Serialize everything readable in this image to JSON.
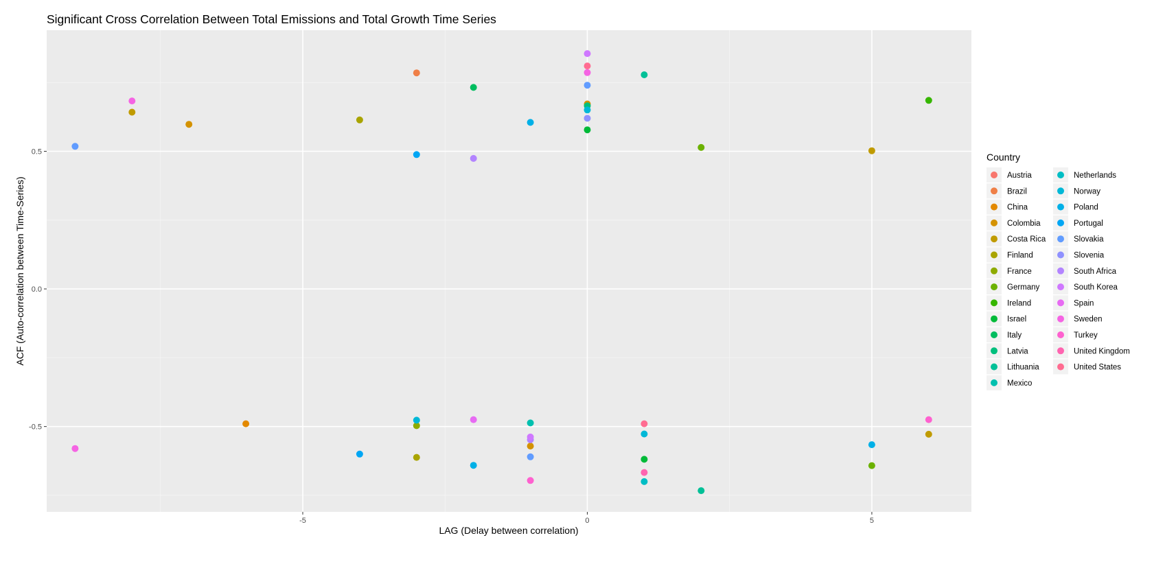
{
  "chart_data": {
    "type": "scatter",
    "title": "Significant Cross Correlation Between Total Emissions and Total Growth Time Series",
    "xlabel": "LAG (Delay between correlation)",
    "ylabel": "ACF (Auto-correlation between Time-Series)",
    "xlim": [
      -9.5,
      6.75
    ],
    "ylim": [
      -0.81,
      0.94
    ],
    "x_ticks": [
      -5,
      0,
      5
    ],
    "x_tick_labels": [
      "-5",
      "0",
      "5"
    ],
    "y_ticks": [
      -0.5,
      0.0,
      0.5
    ],
    "y_tick_labels": [
      "-0.5",
      "0.0",
      "0.5"
    ],
    "grid": true,
    "legend_title": "Country",
    "legend_position": "right",
    "series": [
      {
        "name": "Austria",
        "color": "#F8766D",
        "points": []
      },
      {
        "name": "Brazil",
        "color": "#EF7F47",
        "points": [
          {
            "x": -3,
            "y": 0.785
          }
        ]
      },
      {
        "name": "China",
        "color": "#E38900",
        "points": [
          {
            "x": -6,
            "y": -0.49
          }
        ]
      },
      {
        "name": "Colombia",
        "color": "#D49200",
        "points": [
          {
            "x": -7,
            "y": 0.598
          },
          {
            "x": 0,
            "y": 0.672
          },
          {
            "x": -1,
            "y": -0.571
          }
        ]
      },
      {
        "name": "Costa Rica",
        "color": "#C09B00",
        "points": [
          {
            "x": -8,
            "y": 0.642
          },
          {
            "x": 5,
            "y": 0.502
          },
          {
            "x": 6,
            "y": -0.528
          }
        ]
      },
      {
        "name": "Finland",
        "color": "#A9A400",
        "points": [
          {
            "x": -4,
            "y": 0.614
          },
          {
            "x": -3,
            "y": -0.612
          }
        ]
      },
      {
        "name": "France",
        "color": "#8EAB00",
        "points": [
          {
            "x": -3,
            "y": -0.497
          }
        ]
      },
      {
        "name": "Germany",
        "color": "#6BB100",
        "points": [
          {
            "x": 2,
            "y": 0.514
          },
          {
            "x": 5,
            "y": -0.642
          }
        ]
      },
      {
        "name": "Ireland",
        "color": "#36B600",
        "points": [
          {
            "x": 6,
            "y": 0.685
          }
        ]
      },
      {
        "name": "Israel",
        "color": "#00BA38",
        "points": [
          {
            "x": 0,
            "y": 0.578
          },
          {
            "x": 1,
            "y": -0.619
          }
        ]
      },
      {
        "name": "Italy",
        "color": "#00BD5F",
        "points": [
          {
            "x": -2,
            "y": 0.732
          }
        ]
      },
      {
        "name": "Latvia",
        "color": "#00BF7D",
        "points": [
          {
            "x": 0,
            "y": 0.665
          }
        ]
      },
      {
        "name": "Lithuania",
        "color": "#00C097",
        "points": [
          {
            "x": 1,
            "y": 0.778
          },
          {
            "x": 2,
            "y": -0.733
          }
        ]
      },
      {
        "name": "Mexico",
        "color": "#00C0AF",
        "points": [
          {
            "x": -1,
            "y": -0.487
          }
        ]
      },
      {
        "name": "Netherlands",
        "color": "#00BDC4",
        "points": [
          {
            "x": 1,
            "y": -0.7
          }
        ]
      },
      {
        "name": "Norway",
        "color": "#00B8D7",
        "points": [
          {
            "x": -3,
            "y": -0.477
          },
          {
            "x": 1,
            "y": -0.527
          },
          {
            "x": 0,
            "y": 0.65
          }
        ]
      },
      {
        "name": "Poland",
        "color": "#00B0E7",
        "points": [
          {
            "x": -1,
            "y": 0.605
          },
          {
            "x": -2,
            "y": -0.641
          },
          {
            "x": 5,
            "y": -0.566
          }
        ]
      },
      {
        "name": "Portugal",
        "color": "#00A6F4",
        "points": [
          {
            "x": -3,
            "y": 0.488
          },
          {
            "x": -4,
            "y": -0.6
          }
        ]
      },
      {
        "name": "Slovakia",
        "color": "#619CFF",
        "points": [
          {
            "x": -9,
            "y": 0.518
          },
          {
            "x": 0,
            "y": 0.74
          },
          {
            "x": -1,
            "y": -0.61
          }
        ]
      },
      {
        "name": "Slovenia",
        "color": "#8F91FF",
        "points": [
          {
            "x": 0,
            "y": 0.62
          }
        ]
      },
      {
        "name": "South Africa",
        "color": "#B384FF",
        "points": [
          {
            "x": -2,
            "y": 0.474
          },
          {
            "x": -1,
            "y": -0.548
          }
        ]
      },
      {
        "name": "South Korea",
        "color": "#CF78FF",
        "points": [
          {
            "x": 0,
            "y": 0.855
          },
          {
            "x": -1,
            "y": -0.538
          }
        ]
      },
      {
        "name": "Spain",
        "color": "#E76BF3",
        "points": [
          {
            "x": -2,
            "y": -0.475
          }
        ]
      },
      {
        "name": "Sweden",
        "color": "#F564E3",
        "points": [
          {
            "x": -8,
            "y": 0.683
          },
          {
            "x": -9,
            "y": -0.58
          },
          {
            "x": 0,
            "y": 0.786
          }
        ]
      },
      {
        "name": "Turkey",
        "color": "#FE61CF",
        "points": [
          {
            "x": -1,
            "y": -0.696
          },
          {
            "x": 6,
            "y": -0.475
          }
        ]
      },
      {
        "name": "United Kingdom",
        "color": "#FF64B0",
        "points": [
          {
            "x": 1,
            "y": -0.667
          }
        ]
      },
      {
        "name": "United States",
        "color": "#FF6C91",
        "points": [
          {
            "x": 0,
            "y": 0.81
          },
          {
            "x": 1,
            "y": -0.49
          }
        ]
      }
    ]
  }
}
